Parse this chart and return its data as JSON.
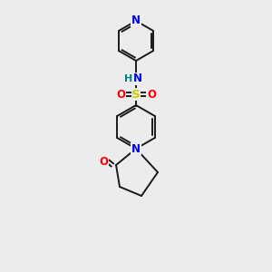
{
  "bg_color": "#ececec",
  "bond_color": "#1a1a1a",
  "atom_colors": {
    "N": "#0000ee",
    "O": "#ff0000",
    "S": "#cccc00",
    "H": "#008080"
  },
  "figsize": [
    3.0,
    3.0
  ],
  "dpi": 100,
  "lw": 1.4,
  "fs": 8.5
}
